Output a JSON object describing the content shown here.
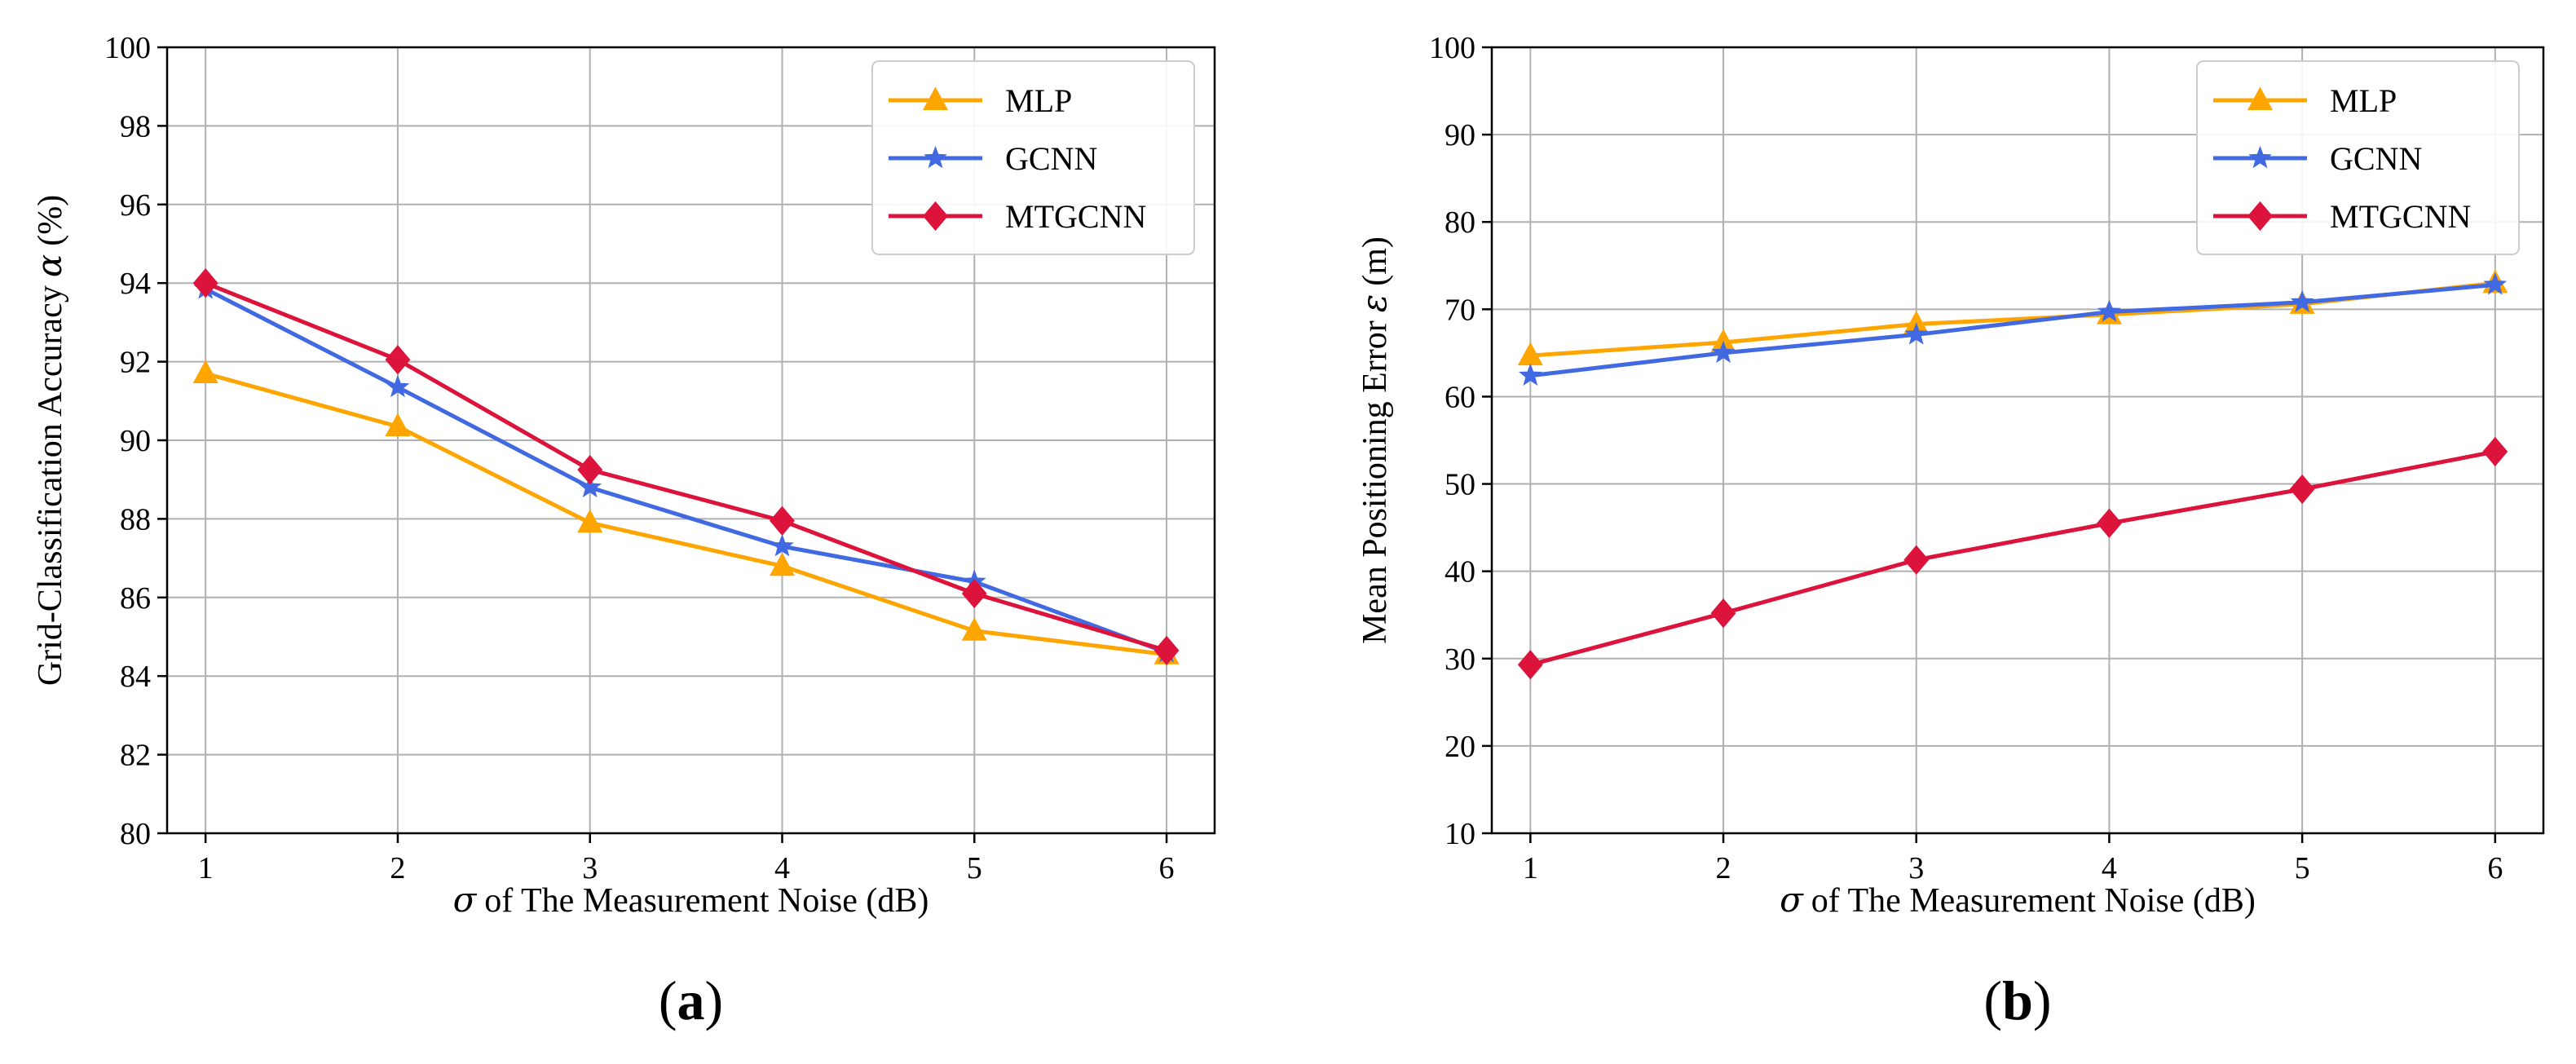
{
  "chart_data": [
    {
      "panel_label": "a",
      "type": "line",
      "xlabel_symbol": "σ",
      "xlabel": "of The Measurement Noise (dB)",
      "ylabel": "Grid-Classification Accuracy",
      "ylabel_symbol": "α",
      "ylabel_unit": "(%)",
      "x": [
        1,
        2,
        3,
        4,
        5,
        6
      ],
      "xlim": [
        0.8,
        6.25
      ],
      "ylim": [
        80,
        100
      ],
      "yticks": [
        80,
        82,
        84,
        86,
        88,
        90,
        92,
        94,
        96,
        98,
        100
      ],
      "grid": true,
      "legend_position": "top-right",
      "series": [
        {
          "name": "MLP",
          "color": "#FFA500",
          "marker": "triangle",
          "values": [
            91.7,
            90.35,
            87.9,
            86.8,
            85.15,
            84.55
          ]
        },
        {
          "name": "GCNN",
          "color": "#4169E1",
          "marker": "star",
          "values": [
            93.85,
            91.35,
            88.8,
            87.3,
            86.4,
            84.6
          ]
        },
        {
          "name": "MTGCNN",
          "color": "#DC143C",
          "marker": "diamond",
          "values": [
            94.0,
            92.05,
            89.25,
            87.95,
            86.1,
            84.65
          ]
        }
      ]
    },
    {
      "panel_label": "b",
      "type": "line",
      "xlabel_symbol": "σ",
      "xlabel": "of The Measurement Noise (dB)",
      "ylabel": "Mean Positioning Error",
      "ylabel_symbol": "ε",
      "ylabel_unit": "(m)",
      "x": [
        1,
        2,
        3,
        4,
        5,
        6
      ],
      "xlim": [
        0.8,
        6.25
      ],
      "ylim": [
        10,
        100
      ],
      "yticks": [
        10,
        20,
        30,
        40,
        50,
        60,
        70,
        80,
        90,
        100
      ],
      "grid": true,
      "legend_position": "top-right",
      "series": [
        {
          "name": "MLP",
          "color": "#FFA500",
          "marker": "triangle",
          "values": [
            64.7,
            66.2,
            68.3,
            69.4,
            70.6,
            73.0
          ]
        },
        {
          "name": "GCNN",
          "color": "#4169E1",
          "marker": "star",
          "values": [
            62.4,
            65.0,
            67.1,
            69.7,
            70.8,
            72.8
          ]
        },
        {
          "name": "MTGCNN",
          "color": "#DC143C",
          "marker": "diamond",
          "values": [
            29.3,
            35.2,
            41.3,
            45.5,
            49.4,
            53.7
          ]
        }
      ]
    }
  ]
}
